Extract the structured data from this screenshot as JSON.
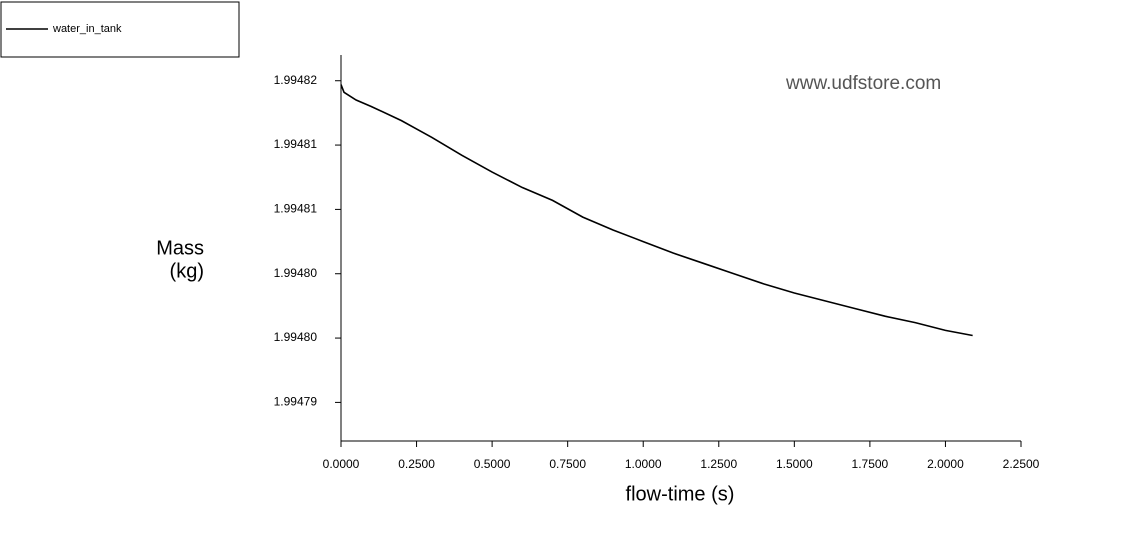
{
  "chart_data": {
    "type": "line",
    "x_label": "flow-time (s)",
    "y_label": [
      "Mass",
      "(kg)"
    ],
    "watermark": "www.udfstore.com",
    "legend": "top-left",
    "x": [
      0,
      0.01,
      0.05,
      0.1,
      0.2,
      0.3,
      0.4,
      0.5,
      0.6,
      0.7,
      0.8,
      0.9,
      1.0,
      1.1,
      1.2,
      1.3,
      1.4,
      1.5,
      1.6,
      1.7,
      1.8,
      1.9,
      2.0,
      2.09
    ],
    "series": [
      {
        "name": "water_in_tank",
        "color": "#000000",
        "values": [
          1.9948197,
          1.9948191,
          1.9948185,
          1.994818,
          1.9948169,
          1.9948156,
          1.9948142,
          1.9948129,
          1.9948117,
          1.9948107,
          1.9948094,
          1.9948084,
          1.9948075,
          1.9948066,
          1.9948058,
          1.994805,
          1.9948042,
          1.9948035,
          1.9948029,
          1.9948023,
          1.9948017,
          1.9948012,
          1.9948006,
          1.9948002
        ]
      }
    ],
    "xlim": [
      0,
      2.25
    ],
    "xticks": [
      {
        "value": 0,
        "label": "0.0000"
      },
      {
        "value": 0.25,
        "label": "0.2500"
      },
      {
        "value": 0.5,
        "label": "0.5000"
      },
      {
        "value": 0.75,
        "label": "0.7500"
      },
      {
        "value": 1,
        "label": "1.0000"
      },
      {
        "value": 1.25,
        "label": "1.2500"
      },
      {
        "value": 1.5,
        "label": "1.5000"
      },
      {
        "value": 1.75,
        "label": "1.7500"
      },
      {
        "value": 2,
        "label": "2.0000"
      },
      {
        "value": 2.25,
        "label": "2.2500"
      }
    ],
    "ylim": [
      1.994792,
      1.994822
    ],
    "yticks": [
      {
        "value": 1.994795,
        "label": "1.99479"
      },
      {
        "value": 1.9948,
        "label": "1.99480"
      },
      {
        "value": 1.994805,
        "label": "1.99480"
      },
      {
        "value": 1.99481,
        "label": "1.99481"
      },
      {
        "value": 1.994815,
        "label": "1.99481"
      },
      {
        "value": 1.99482,
        "label": "1.99482"
      }
    ],
    "grid": false
  }
}
